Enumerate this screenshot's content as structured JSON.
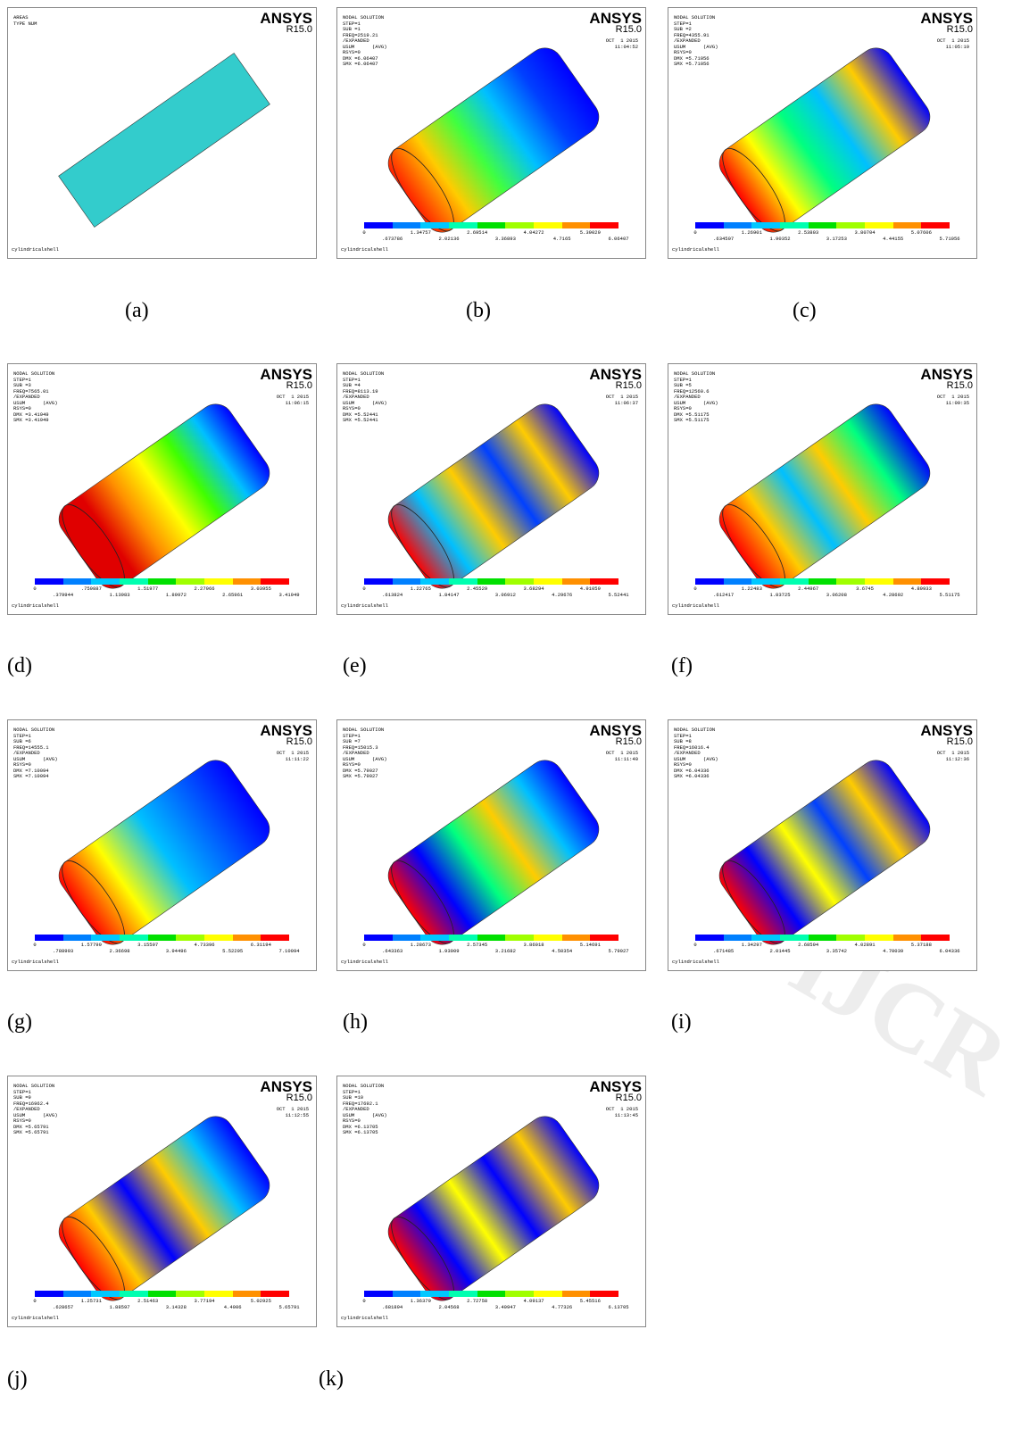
{
  "watermark": "IJCR",
  "panels": [
    {
      "label": "(a)",
      "logo": "ANSYS",
      "version": "R15.0",
      "info": [
        "AREAS",
        "TYPE NUM"
      ],
      "footer": "cylindricalshell"
    },
    {
      "label": "(b)",
      "logo": "ANSYS",
      "version": "R15.0",
      "info": [
        "NODAL SOLUTION",
        "STEP=1",
        "SUB =1",
        "FREQ=2519.21",
        "/EXPANDED",
        "USUM      (AVG)",
        "RSYS=0",
        "DMX =6.06407",
        "SMX =6.06407"
      ],
      "date": [
        "OCT  1 2015",
        "11:04:52"
      ],
      "legend": [
        "0",
        ".673786",
        "1.34757",
        "2.02136",
        "2.69514",
        "3.36893",
        "4.04272",
        "4.7165",
        "5.39029",
        "6.06407"
      ],
      "footer": "cylindricalshell"
    },
    {
      "label": "(c)",
      "logo": "ANSYS",
      "version": "R15.0",
      "info": [
        "NODAL SOLUTION",
        "STEP=1",
        "SUB =2",
        "FREQ=4355.91",
        "/EXPANDED",
        "USUM      (AVG)",
        "RSYS=0",
        "DMX =5.71056",
        "SMX =5.71056"
      ],
      "date": [
        "OCT  1 2015",
        "11:05:19"
      ],
      "legend": [
        "0",
        ".634507",
        "1.26901",
        "1.90352",
        "2.53803",
        "3.17253",
        "3.80704",
        "4.44155",
        "5.07606",
        "5.71056"
      ],
      "footer": "cylindricalshell"
    },
    {
      "label": "(d)",
      "logo": "ANSYS",
      "version": "R15.0",
      "info": [
        "NODAL SOLUTION",
        "STEP=1",
        "SUB =3",
        "FREQ=7565.01",
        "/EXPANDED",
        "USUM      (AVG)",
        "RSYS=0",
        "DMX =3.41949",
        "SMX =3.41949"
      ],
      "date": [
        "OCT  1 2015",
        "11:06:15"
      ],
      "legend": [
        "0",
        ".379944",
        ".759887",
        "1.13983",
        "1.51977",
        "1.89972",
        "2.27966",
        "2.65961",
        "3.03955",
        "3.41949"
      ],
      "footer": "cylindricalshell"
    },
    {
      "label": "(e)",
      "logo": "ANSYS",
      "version": "R15.0",
      "info": [
        "NODAL SOLUTION",
        "STEP=1",
        "SUB =4",
        "FREQ=8113.19",
        "/EXPANDED",
        "USUM      (AVG)",
        "RSYS=0",
        "DMX =5.52441",
        "SMX =5.52441"
      ],
      "date": [
        "OCT  1 2015",
        "11:06:37"
      ],
      "legend": [
        "0",
        ".613824",
        "1.22765",
        "1.84147",
        "2.45529",
        "3.06912",
        "3.68294",
        "4.29676",
        "4.91059",
        "5.52441"
      ],
      "footer": "cylindricalshell"
    },
    {
      "label": "(f)",
      "logo": "ANSYS",
      "version": "R15.0",
      "info": [
        "NODAL SOLUTION",
        "STEP=1",
        "SUB =5",
        "FREQ=12560.6",
        "/EXPANDED",
        "USUM      (AVG)",
        "RSYS=0",
        "DMX =5.51175",
        "SMX =5.51175"
      ],
      "date": [
        "OCT  1 2015",
        "11:09:35"
      ],
      "legend": [
        "0",
        ".612417",
        "1.22483",
        "1.83725",
        "2.44967",
        "3.06208",
        "3.6745",
        "4.28692",
        "4.89933",
        "5.51175"
      ],
      "footer": "cylindricalshell"
    },
    {
      "label": "(g)",
      "logo": "ANSYS",
      "version": "R15.0",
      "info": [
        "NODAL SOLUTION",
        "STEP=1",
        "SUB =6",
        "FREQ=14555.1",
        "/EXPANDED",
        "USUM      (AVG)",
        "RSYS=0",
        "DMX =7.10094",
        "SMX =7.10094"
      ],
      "date": [
        "OCT  1 2015",
        "11:11:22"
      ],
      "legend": [
        "0",
        ".788993",
        "1.57799",
        "2.36698",
        "3.15597",
        "3.94496",
        "4.73396",
        "5.52295",
        "6.31194",
        "7.10094"
      ],
      "footer": "cylindricalshell"
    },
    {
      "label": "(h)",
      "logo": "ANSYS",
      "version": "R15.0",
      "info": [
        "NODAL SOLUTION",
        "STEP=1",
        "SUB =7",
        "FREQ=15015.3",
        "/EXPANDED",
        "USUM      (AVG)",
        "RSYS=0",
        "DMX =5.79027",
        "SMX =5.79027"
      ],
      "date": [
        "OCT  1 2015",
        "11:11:40"
      ],
      "legend": [
        "0",
        ".643363",
        "1.28673",
        "1.93009",
        "2.57345",
        "3.21682",
        "3.86018",
        "4.50354",
        "5.14691",
        "5.79027"
      ],
      "footer": "cylindricalshell"
    },
    {
      "label": "(i)",
      "logo": "ANSYS",
      "version": "R15.0",
      "info": [
        "NODAL SOLUTION",
        "STEP=1",
        "SUB =8",
        "FREQ=16016.4",
        "/EXPANDED",
        "USUM      (AVG)",
        "RSYS=0",
        "DMX =6.04336",
        "SMX =6.04336"
      ],
      "date": [
        "OCT  1 2015",
        "11:12:36"
      ],
      "legend": [
        "0",
        ".671485",
        "1.34297",
        "2.01445",
        "2.68594",
        "3.35742",
        "4.02891",
        "4.70039",
        "5.37188",
        "6.04336"
      ],
      "footer": "cylindricalshell"
    },
    {
      "label": "(j)",
      "logo": "ANSYS",
      "version": "R15.0",
      "info": [
        "NODAL SOLUTION",
        "STEP=1",
        "SUB =9",
        "FREQ=16962.4",
        "/EXPANDED",
        "USUM      (AVG)",
        "RSYS=0",
        "DMX =5.65791",
        "SMX =5.65791"
      ],
      "date": [
        "OCT  1 2015",
        "11:12:55"
      ],
      "legend": [
        "0",
        ".628657",
        "1.25731",
        "1.88597",
        "2.51463",
        "3.14328",
        "3.77194",
        "4.4006",
        "5.02925",
        "5.65791"
      ],
      "footer": "cylindricalshell"
    },
    {
      "label": "(k)",
      "logo": "ANSYS",
      "version": "R15.0",
      "info": [
        "NODAL SOLUTION",
        "STEP=1",
        "SUB =10",
        "FREQ=17692.1",
        "/EXPANDED",
        "USUM      (AVG)",
        "RSYS=0",
        "DMX =6.13705",
        "SMX =6.13705"
      ],
      "date": [
        "OCT  1 2015",
        "11:13:45"
      ],
      "legend": [
        "0",
        ".681894",
        "1.36379",
        "2.04568",
        "2.72758",
        "3.40947",
        "4.09137",
        "4.77326",
        "5.45516",
        "6.13705"
      ],
      "footer": "cylindricalshell"
    }
  ]
}
